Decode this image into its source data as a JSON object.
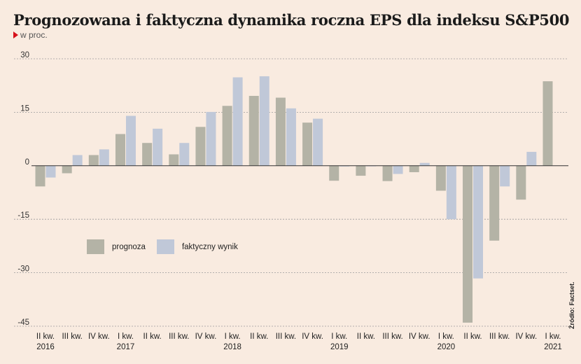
{
  "title": "Prognozowana i faktyczna dynamika roczna EPS dla indeksu S&P500",
  "subtitle": "w proc.",
  "source": "Źródło: Factset.",
  "colors": {
    "prognoza": "#b4b3a6",
    "faktyczny": "#c0c8d8",
    "grid": "#9a9a9a",
    "axis": "#333333",
    "background": "#f9ebe0"
  },
  "chart_data": {
    "type": "bar",
    "ylim": [
      -45,
      30
    ],
    "yticks": [
      30,
      15,
      0,
      -15,
      -30,
      -45
    ],
    "grid": true,
    "legend_position": "lower-left",
    "categories": [
      {
        "q": "II kw.",
        "year": "2016"
      },
      {
        "q": "III kw.",
        "year": ""
      },
      {
        "q": "IV kw.",
        "year": ""
      },
      {
        "q": "I kw.",
        "year": "2017"
      },
      {
        "q": "II kw.",
        "year": ""
      },
      {
        "q": "III kw.",
        "year": ""
      },
      {
        "q": "IV kw.",
        "year": ""
      },
      {
        "q": "I kw.",
        "year": "2018"
      },
      {
        "q": "II kw.",
        "year": ""
      },
      {
        "q": "III kw.",
        "year": ""
      },
      {
        "q": "IV kw.",
        "year": ""
      },
      {
        "q": "I kw.",
        "year": "2019"
      },
      {
        "q": "II kw.",
        "year": ""
      },
      {
        "q": "III kw.",
        "year": ""
      },
      {
        "q": "IV kw.",
        "year": ""
      },
      {
        "q": "I kw.",
        "year": "2020"
      },
      {
        "q": "II kw.",
        "year": ""
      },
      {
        "q": "III kw.",
        "year": ""
      },
      {
        "q": "IV kw.",
        "year": ""
      },
      {
        "q": "I kw.",
        "year": "2021"
      }
    ],
    "series": [
      {
        "name": "prognoza",
        "values": [
          -5.8,
          -2.1,
          3.0,
          8.9,
          6.4,
          3.2,
          10.9,
          16.8,
          19.6,
          19.1,
          12.1,
          -4.2,
          -2.8,
          -4.3,
          -1.8,
          -7.0,
          -44.0,
          -21.0,
          -9.5,
          23.7
        ]
      },
      {
        "name": "faktyczny wynik",
        "values": [
          -3.3,
          3.0,
          4.6,
          14.0,
          10.4,
          6.4,
          15.1,
          24.8,
          25.1,
          16.1,
          13.2,
          -0.2,
          0.0,
          -2.3,
          0.8,
          -15.0,
          -31.6,
          -5.8,
          3.9,
          null
        ]
      }
    ]
  }
}
